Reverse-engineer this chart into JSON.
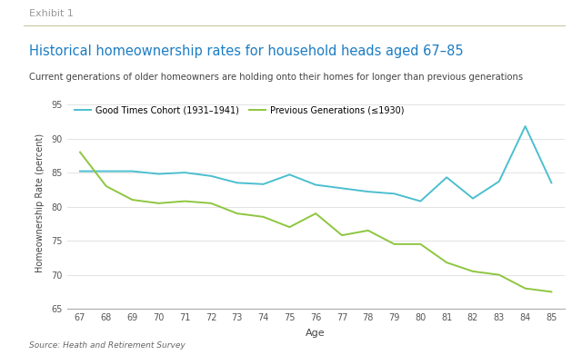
{
  "title": "Historical homeownership rates for household heads aged 67–85",
  "subtitle": "Current generations of older homeowners are holding onto their homes for longer than previous generations",
  "exhibit": "Exhibit 1",
  "source": "Source: Heath and Retirement Survey",
  "xlabel": "Age",
  "ylabel": "Homeownership Rate (percent)",
  "ages": [
    67,
    68,
    69,
    70,
    71,
    72,
    73,
    74,
    75,
    76,
    77,
    78,
    79,
    80,
    81,
    82,
    83,
    84,
    85
  ],
  "good_times": [
    85.2,
    85.2,
    85.2,
    84.8,
    85.0,
    84.5,
    83.5,
    83.3,
    84.7,
    83.2,
    82.7,
    82.2,
    81.9,
    80.8,
    84.3,
    81.2,
    83.7,
    91.8,
    83.5
  ],
  "prev_gen": [
    88.0,
    83.0,
    81.0,
    80.5,
    80.8,
    80.5,
    79.0,
    78.5,
    77.0,
    79.0,
    75.8,
    76.5,
    74.5,
    74.5,
    71.8,
    70.5,
    70.0,
    68.0,
    67.5
  ],
  "good_times_color": "#4BBFCF",
  "prev_gen_color": "#8DC63F",
  "ylim": [
    65,
    96
  ],
  "yticks": [
    65,
    70,
    75,
    80,
    85,
    90,
    95
  ],
  "title_color": "#1B7DC4",
  "exhibit_color": "#999999",
  "subtitle_color": "#444444",
  "background_color": "#FFFFFF",
  "legend_label_good": "Good Times Cohort (1931–1941)",
  "legend_label_prev": "Previous Generations (≤1930)"
}
